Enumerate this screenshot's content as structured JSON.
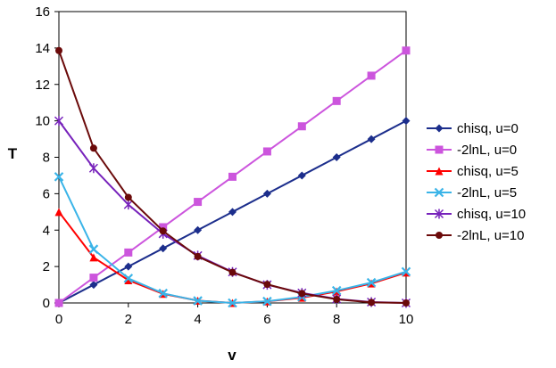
{
  "chart_data": {
    "type": "line",
    "title": "",
    "xlabel": "v",
    "ylabel": "T",
    "xlim": [
      0,
      10
    ],
    "ylim": [
      0,
      16
    ],
    "x_ticks": [
      "0",
      "2",
      "4",
      "6",
      "8",
      "10"
    ],
    "y_ticks": [
      "0",
      "2",
      "4",
      "6",
      "8",
      "10",
      "12",
      "14",
      "16"
    ],
    "grid": false,
    "legend_position": "right",
    "x": [
      0,
      1,
      2,
      3,
      4,
      5,
      6,
      7,
      8,
      9,
      10
    ],
    "series": [
      {
        "name": "chisq, u=0",
        "color": "#1c2e8c",
        "marker": "diamond",
        "values": [
          0,
          1,
          2,
          3,
          4,
          5,
          6,
          7,
          8,
          9,
          10
        ]
      },
      {
        "name": "-2lnL, u=0",
        "color": "#cc55dd",
        "marker": "square",
        "values": [
          0,
          1.39,
          2.77,
          4.16,
          5.55,
          6.93,
          8.32,
          9.7,
          11.09,
          12.48,
          13.86
        ]
      },
      {
        "name": "chisq, u=5",
        "color": "#ff0000",
        "marker": "triangle",
        "values": [
          5,
          2.5,
          1.25,
          0.5,
          0.13,
          0,
          0.083,
          0.29,
          0.63,
          1.07,
          1.67
        ]
      },
      {
        "name": "-2lnL, u=5",
        "color": "#3ab4e8",
        "marker": "x",
        "values": [
          6.93,
          2.95,
          1.35,
          0.53,
          0.12,
          0,
          0.09,
          0.33,
          0.68,
          1.12,
          1.72
        ]
      },
      {
        "name": "chisq, u=10",
        "color": "#7722bb",
        "marker": "asterisk",
        "values": [
          10,
          7.4,
          5.4,
          3.8,
          2.6,
          1.7,
          1.0,
          0.55,
          0.22,
          0.05,
          0
        ]
      },
      {
        "name": "-2lnL, u=10",
        "color": "#6b0a0a",
        "marker": "circle",
        "values": [
          13.86,
          8.5,
          5.8,
          3.95,
          2.55,
          1.68,
          1.02,
          0.52,
          0.2,
          0.03,
          0
        ]
      }
    ]
  }
}
